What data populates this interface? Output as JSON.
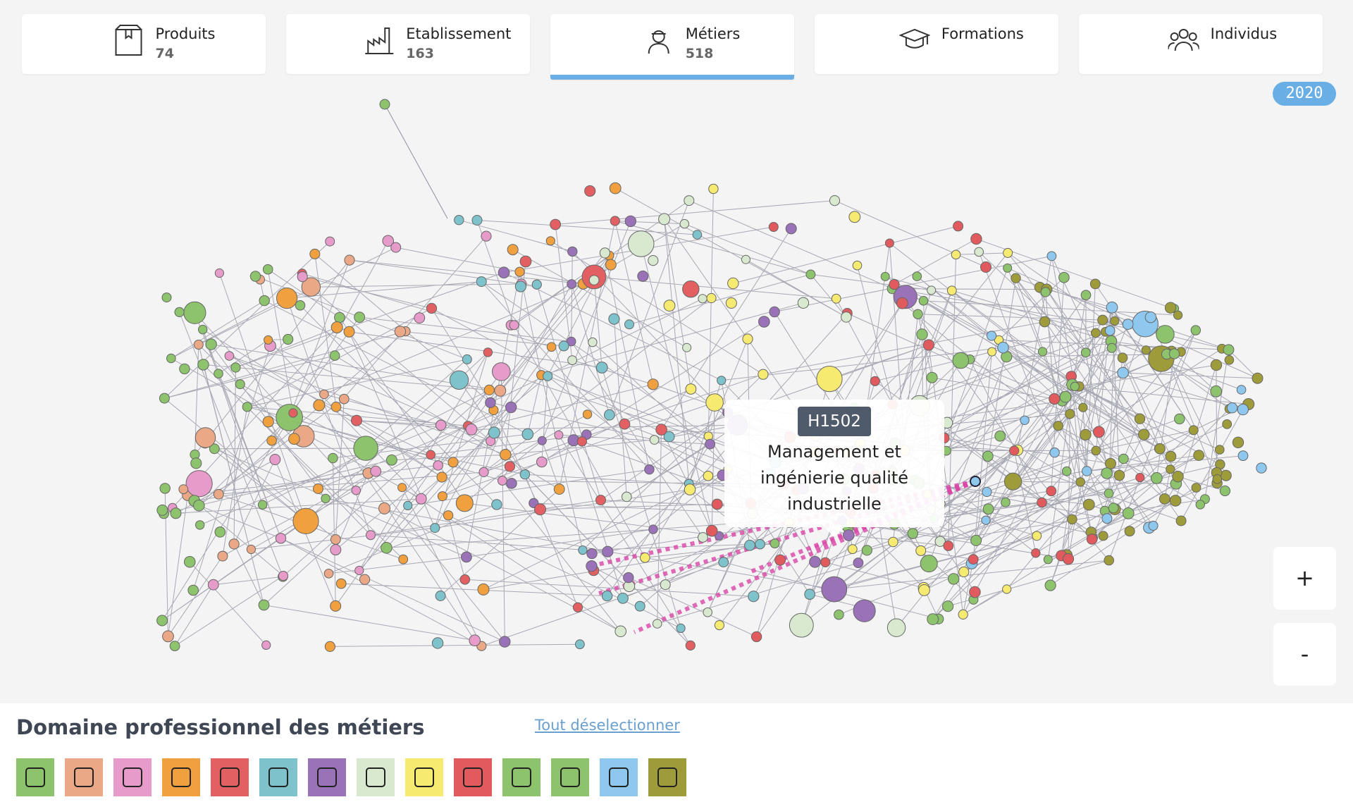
{
  "tabs": [
    {
      "label": "Produits",
      "count": 74
    },
    {
      "label": "Etablissement",
      "count": 163
    },
    {
      "label": "Métiers",
      "count": 518,
      "active": true
    },
    {
      "label": "Formations"
    },
    {
      "label": "Individus"
    }
  ],
  "year": "2020",
  "tooltip": {
    "code": "H1502",
    "text": "Management et ingénierie qualité industrielle"
  },
  "zoom": {
    "in": "+",
    "out": "-"
  },
  "legend": {
    "title": "Domaine professionnel des métiers",
    "deselect": "Tout déselectionner",
    "colors": [
      "#8cc36c",
      "#eaa887",
      "#e69bca",
      "#f0a03f",
      "#e25f62",
      "#7ec2cc",
      "#9a72b8",
      "#d8e9d0",
      "#f7ea70",
      "#e05a5e",
      "#8cc36c",
      "#8cc36c",
      "#8ec8ef",
      "#9e9b3b"
    ]
  }
}
